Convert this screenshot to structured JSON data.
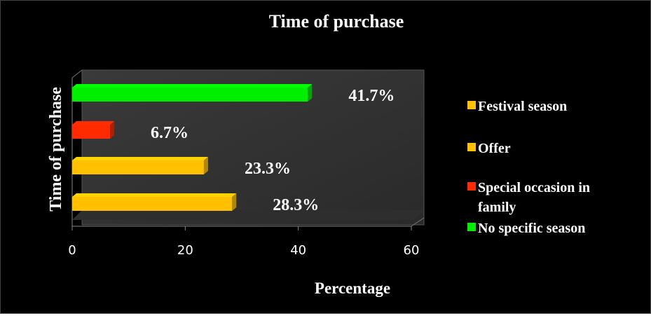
{
  "chart_data": {
    "type": "bar",
    "orientation": "horizontal",
    "title": "Time of purchase",
    "xlabel": "Percentage",
    "ylabel": "Time of purchase",
    "xlim": [
      0,
      60
    ],
    "xticks": [
      "0",
      "20",
      "40",
      "60"
    ],
    "categories": [
      "Festival season",
      "Offer",
      "Special occasion in family",
      "No specific season"
    ],
    "values": [
      28.3,
      23.3,
      6.7,
      41.7
    ],
    "data_labels": [
      "28.3%",
      "23.3%",
      "6.7%",
      "41.7%"
    ],
    "colors": [
      "#ffc000",
      "#ffc000",
      "#ff2a00",
      "#00ee00"
    ],
    "legend": {
      "placement": "right",
      "entries": [
        {
          "label": "Festival season",
          "color": "#ffc000"
        },
        {
          "label": "Offer",
          "color": "#ffc000"
        },
        {
          "label": "Special occasion in family",
          "color": "#ff2a00"
        },
        {
          "label": "No specific season",
          "color": "#00ee00"
        }
      ]
    },
    "grid": false,
    "style": "3d",
    "background": "#000000",
    "plot_background": "#333333"
  }
}
